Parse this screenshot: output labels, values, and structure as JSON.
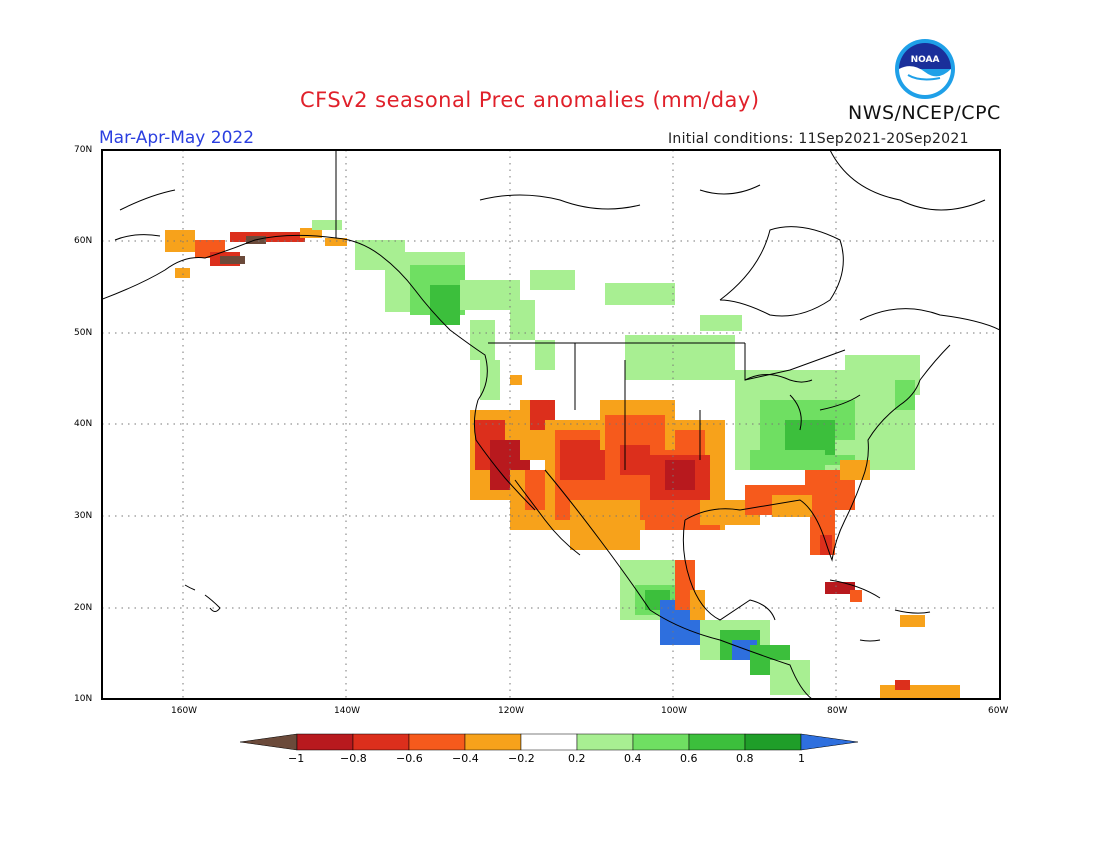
{
  "header": {
    "title": "CFSv2 seasonal Prec anomalies (mm/day)",
    "season": "Mar-Apr-May 2022",
    "initial_conditions": "Initial conditions: 11Sep2021-20Sep2021",
    "agency": "NWS/NCEP/CPC",
    "logo_text": "NOAA"
  },
  "map": {
    "projection": "lat-lon",
    "lat_range": [
      10,
      70
    ],
    "lon_range": [
      -170,
      -60
    ],
    "lat_labels": [
      "70N",
      "60N",
      "50N",
      "40N",
      "30N",
      "20N",
      "10N"
    ],
    "lon_labels": [
      "160W",
      "140W",
      "120W",
      "100W",
      "80W",
      "60W"
    ],
    "grid": "dotted",
    "regions_described": [
      {
        "area": "Southwest US",
        "anomaly": "dry (-0.4 to -1)"
      },
      {
        "area": "Southern Plains",
        "anomaly": "dry (-0.4 to -1)"
      },
      {
        "area": "Florida / Southeast coast",
        "anomaly": "dry (-0.2 to -0.8)"
      },
      {
        "area": "Southern Alaska",
        "anomaly": "dry (-0.2 to -1)"
      },
      {
        "area": "Ohio Valley",
        "anomaly": "wet (0.2 to 0.8)"
      },
      {
        "area": "Pacific Northwest / British Columbia",
        "anomaly": "wet (0.2 to 0.6)"
      },
      {
        "area": "Southern Mexico / Central America",
        "anomaly": "wet (0.2 to 1)"
      }
    ]
  },
  "colorbar": {
    "labels": [
      "−1",
      "−0.8",
      "−0.6",
      "−0.4",
      "−0.2",
      "0.2",
      "0.4",
      "0.6",
      "0.8",
      "1"
    ],
    "colors": [
      "#6b4a3a",
      "#b8191e",
      "#dc2f1c",
      "#f65a1c",
      "#f7a21b",
      "#ffffff",
      "#a8ef92",
      "#6fdf62",
      "#3cbf3c",
      "#1f9e29",
      "#2e6fde"
    ]
  }
}
